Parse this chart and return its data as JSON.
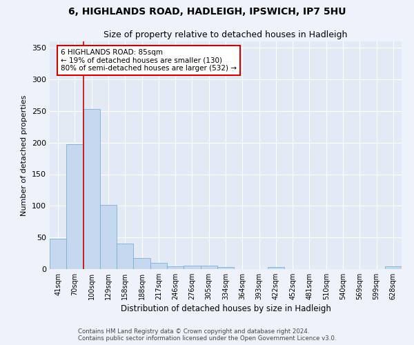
{
  "title_line1": "6, HIGHLANDS ROAD, HADLEIGH, IPSWICH, IP7 5HU",
  "title_line2": "Size of property relative to detached houses in Hadleigh",
  "xlabel": "Distribution of detached houses by size in Hadleigh",
  "ylabel": "Number of detached properties",
  "bar_labels": [
    "41sqm",
    "70sqm",
    "100sqm",
    "129sqm",
    "158sqm",
    "188sqm",
    "217sqm",
    "246sqm",
    "276sqm",
    "305sqm",
    "334sqm",
    "364sqm",
    "393sqm",
    "422sqm",
    "452sqm",
    "481sqm",
    "510sqm",
    "540sqm",
    "569sqm",
    "599sqm",
    "628sqm"
  ],
  "bar_values": [
    48,
    197,
    253,
    102,
    40,
    18,
    10,
    4,
    5,
    5,
    3,
    0,
    0,
    3,
    0,
    0,
    0,
    0,
    0,
    0,
    4
  ],
  "bar_color": "#c5d8f0",
  "bar_edge_color": "#7aafd4",
  "ylim": [
    0,
    360
  ],
  "yticks": [
    0,
    50,
    100,
    150,
    200,
    250,
    300,
    350
  ],
  "property_line_x": 1.5,
  "annotation_text": "6 HIGHLANDS ROAD: 85sqm\n← 19% of detached houses are smaller (130)\n80% of semi-detached houses are larger (532) →",
  "annotation_box_color": "#ffffff",
  "annotation_box_edge": "#cc0000",
  "annotation_line_color": "#cc0000",
  "footer_line1": "Contains HM Land Registry data © Crown copyright and database right 2024.",
  "footer_line2": "Contains public sector information licensed under the Open Government Licence v3.0.",
  "bg_color": "#eef2fa",
  "plot_bg_color": "#e4eaf5"
}
